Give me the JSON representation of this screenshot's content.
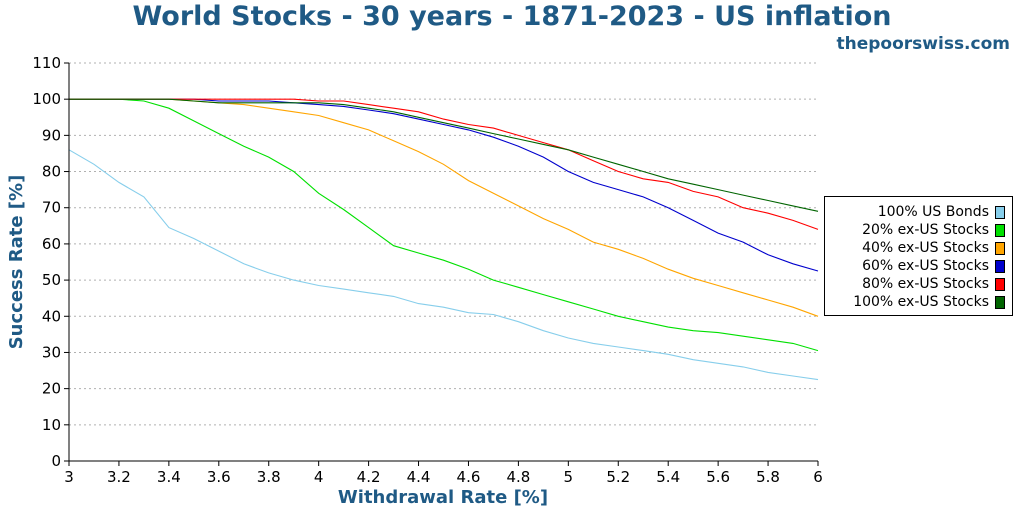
{
  "chart_data": {
    "type": "line",
    "title": "World Stocks - 30 years - 1871-2023 - US inflation",
    "subtitle": "thepoorswiss.com",
    "xlabel": "Withdrawal Rate [%]",
    "ylabel": "Success Rate [%]",
    "xlim": [
      3,
      6
    ],
    "ylim": [
      0,
      110
    ],
    "xticks": [
      "3",
      "3.2",
      "3.4",
      "3.6",
      "3.8",
      "4",
      "4.2",
      "4.4",
      "4.6",
      "4.8",
      "5",
      "5.2",
      "5.4",
      "5.6",
      "5.8",
      "6"
    ],
    "yticks": [
      "0",
      "10",
      "20",
      "30",
      "40",
      "50",
      "60",
      "70",
      "80",
      "90",
      "100",
      "110"
    ],
    "grid": true,
    "legend_position": "right",
    "x": [
      3.0,
      3.1,
      3.2,
      3.3,
      3.4,
      3.5,
      3.6,
      3.7,
      3.8,
      3.9,
      4.0,
      4.1,
      4.2,
      4.3,
      4.4,
      4.5,
      4.6,
      4.7,
      4.8,
      4.9,
      5.0,
      5.1,
      5.2,
      5.3,
      5.4,
      5.5,
      5.6,
      5.7,
      5.8,
      5.9,
      6.0
    ],
    "series": [
      {
        "name": "100% US Bonds",
        "color": "#87ceeb",
        "values": [
          86,
          82,
          77,
          73,
          64.5,
          61.5,
          58,
          54.5,
          52,
          50,
          48.5,
          47.5,
          46.5,
          45.5,
          43.5,
          42.5,
          41,
          40.5,
          38.5,
          36,
          34,
          32.5,
          31.5,
          30.5,
          29.5,
          28,
          27,
          26,
          24.5,
          23.5,
          22.5
        ]
      },
      {
        "name": "20% ex-US Stocks",
        "color": "#00e000",
        "values": [
          100,
          100,
          100,
          99.5,
          97.5,
          94,
          90.5,
          87,
          84,
          80,
          74,
          69.5,
          64.5,
          59.5,
          57.5,
          55.5,
          53,
          50,
          48,
          46,
          44,
          42,
          40,
          38.5,
          37,
          36,
          35.5,
          34.5,
          33.5,
          32.5,
          30.5
        ]
      },
      {
        "name": "40% ex-US Stocks",
        "color": "#ffa500",
        "values": [
          100,
          100,
          100,
          100,
          100,
          99.5,
          99,
          98.5,
          97.5,
          96.5,
          95.5,
          93.5,
          91.5,
          88.5,
          85.5,
          82,
          77.5,
          74,
          70.5,
          67,
          64,
          60.5,
          58.5,
          56,
          53,
          50.5,
          48.5,
          46.5,
          44.5,
          42.5,
          40
        ]
      },
      {
        "name": "60% ex-US Stocks",
        "color": "#0000cd",
        "values": [
          100,
          100,
          100,
          100,
          100,
          100,
          99.5,
          99.5,
          99.5,
          99,
          98.5,
          98,
          97,
          96,
          94.5,
          93,
          91.5,
          89.5,
          87,
          84,
          80,
          77,
          75,
          73,
          70,
          66.5,
          63,
          60.5,
          57,
          54.5,
          52.5
        ]
      },
      {
        "name": "80% ex-US Stocks",
        "color": "#ff0000",
        "values": [
          100,
          100,
          100,
          100,
          100,
          100,
          100,
          100,
          100,
          100,
          99.5,
          99.5,
          98.5,
          97.5,
          96.5,
          94.5,
          93,
          92,
          90,
          88,
          86,
          83,
          80,
          78,
          77,
          74.5,
          73,
          70,
          68.5,
          66.5,
          64
        ]
      },
      {
        "name": "100% ex-US Stocks",
        "color": "#006400",
        "values": [
          100,
          100,
          100,
          100,
          100,
          99.5,
          99,
          99,
          99,
          99,
          99,
          98.5,
          97.5,
          96.5,
          95,
          93.5,
          92,
          90.5,
          89,
          87.5,
          86,
          84,
          82,
          80,
          78,
          76.5,
          75,
          73.5,
          72,
          70.5,
          69
        ]
      }
    ]
  }
}
